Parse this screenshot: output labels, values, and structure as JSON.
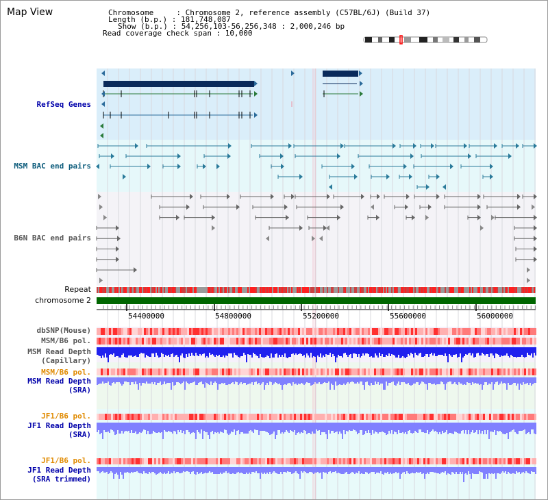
{
  "page": {
    "title": "Map View"
  },
  "info": {
    "chromosome": "Chromosome     : Chromosome 2, reference assembly (C57BL/6J) (Build 37)",
    "length": "Length (b.p.) : 181,748,087",
    "show": "Show (b.p.) : 54,256,103-56,256,348 : 2,000,246 bp",
    "coverage": "Read coverage check span : 10,000"
  },
  "tracks": {
    "refseq": {
      "label": "RefSeq Genes",
      "color": "#0000aa"
    },
    "msm_bac": {
      "label": "MSM BAC end pairs",
      "color": "#0a5a7a"
    },
    "b6n_bac": {
      "label": "B6N BAC end pairs",
      "color": "#555555"
    },
    "repeat": {
      "label": "Repeat"
    },
    "chromosome": {
      "label": "chromosome 2"
    },
    "axis_ticks": [
      "54400000",
      "54800000",
      "55200000",
      "55600000",
      "56000000"
    ],
    "dbsnp": {
      "label": "dbSNP(Mouse)"
    },
    "msm_b6_pol_1": {
      "label": "MSM/B6 pol."
    },
    "msm_depth_cap": {
      "label1": "MSM Read Depth",
      "label2": "(Capillary)"
    },
    "msm_b6_pol_2": {
      "label": "MSM/B6 pol.",
      "color": "#e08a00"
    },
    "msm_depth_sra": {
      "label1": "MSM Read Depth",
      "label2": "(SRA)",
      "color": "#0000aa"
    },
    "jf1_b6_pol_1": {
      "label": "JF1/B6 pol.",
      "color": "#e08a00"
    },
    "jf1_depth_sra": {
      "label1": "JF1 Read Depth",
      "label2": "(SRA)",
      "color": "#0000aa"
    },
    "jf1_b6_pol_2": {
      "label": "JF1/B6 pol.",
      "color": "#e08a00"
    },
    "jf1_depth_trim": {
      "label1": "JF1 Read Depth",
      "label2": "(SRA trimmed)",
      "color": "#0000aa"
    }
  },
  "colors": {
    "refseq_bg": "#daeefa",
    "msm_bg": "#e6f8fa",
    "b6n_bg": "#f4f3f7",
    "gene_dark": "#0a2a5a",
    "green_chrom": "#006600",
    "read_depth_cap": "#2020ee",
    "read_depth_sra": "#8080ff"
  }
}
